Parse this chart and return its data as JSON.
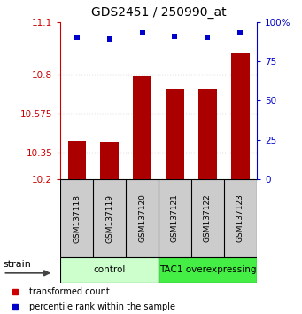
{
  "title": "GDS2451 / 250990_at",
  "samples": [
    "GSM137118",
    "GSM137119",
    "GSM137120",
    "GSM137121",
    "GSM137122",
    "GSM137123"
  ],
  "bar_values": [
    10.42,
    10.41,
    10.79,
    10.72,
    10.72,
    10.92
  ],
  "percentile_values": [
    90,
    89,
    93,
    91,
    90,
    93
  ],
  "bar_color": "#aa0000",
  "dot_color": "#0000cc",
  "ylim_left": [
    10.2,
    11.1
  ],
  "ylim_right": [
    0,
    100
  ],
  "yticks_left": [
    10.2,
    10.35,
    10.575,
    10.8,
    11.1
  ],
  "yticks_right": [
    0,
    25,
    50,
    75,
    100
  ],
  "ytick_labels_left": [
    "10.2",
    "10.35",
    "10.575",
    "10.8",
    "11.1"
  ],
  "ytick_labels_right": [
    "0",
    "25",
    "50",
    "75",
    "100%"
  ],
  "grid_lines": [
    10.35,
    10.575,
    10.8
  ],
  "group_labels": [
    "control",
    "TAC1 overexpressing"
  ],
  "group_colors": [
    "#ccffcc",
    "#44ee44"
  ],
  "strain_label": "strain",
  "legend_items": [
    {
      "color": "#cc0000",
      "label": "transformed count"
    },
    {
      "color": "#0000cc",
      "label": "percentile rank within the sample"
    }
  ],
  "bar_bottom": 10.2,
  "background_color": "#ffffff",
  "sample_area_color": "#cccccc",
  "figsize": [
    3.41,
    3.54
  ],
  "dpi": 100
}
